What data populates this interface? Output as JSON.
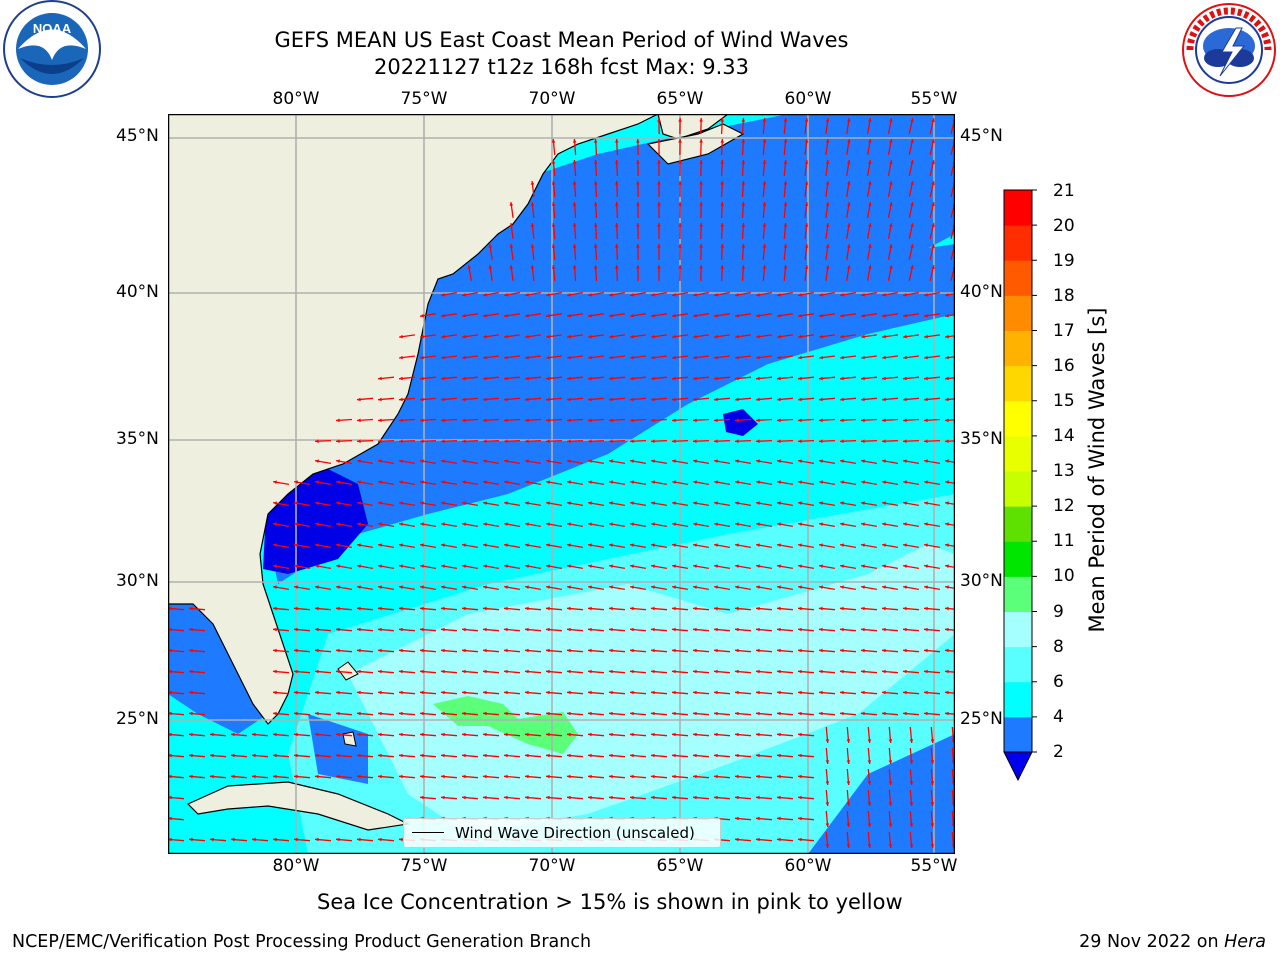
{
  "title": {
    "line1": "GEFS MEAN US East Coast Mean Period of Wind Waves",
    "line2": "20221127 t12z 168h fcst   Max: 9.33"
  },
  "logos": {
    "noaa_text": "NOAA",
    "noaa_ring_text": "NATIONAL OCEANIC AND ATMOSPHERIC ADMINISTRATION • U.S. DEPARTMENT OF COMMERCE",
    "nws_ring_text": "NATIONAL WEATHER SERVICE"
  },
  "map": {
    "lon_labels": [
      "80°W",
      "75°W",
      "70°W",
      "65°W",
      "60°W",
      "55°W"
    ],
    "lat_labels": [
      "45°N",
      "40°N",
      "35°N",
      "30°N",
      "25°N"
    ],
    "legend_label": "Wind Wave Direction (unscaled)",
    "colors": {
      "land": "#efefdf",
      "ocean_band_2_4": "#1e7bff",
      "ocean_band_lt2": "#0000e6",
      "ocean_band_4_6": "#00ffff",
      "ocean_band_6_8": "#59ffff",
      "ocean_band_8_9": "#a6ffff",
      "ocean_band_9_10": "#5bff7a",
      "grid": "#b0b0b0",
      "arrow": "#ff0000"
    }
  },
  "colorbar": {
    "label": "Mean Period of Wind Waves [s]",
    "ticks": [
      "21",
      "20",
      "19",
      "18",
      "17",
      "16",
      "15",
      "14",
      "13",
      "12",
      "11",
      "10",
      "9",
      "8",
      "6",
      "4",
      "2"
    ],
    "levels": [
      2,
      4,
      6,
      8,
      9,
      10,
      11,
      12,
      13,
      14,
      15,
      16,
      17,
      18,
      19,
      20,
      21
    ],
    "colors": [
      "#0000ff",
      "#1e7bff",
      "#00ffff",
      "#59ffff",
      "#a6ffff",
      "#5bff7a",
      "#00e600",
      "#5ee000",
      "#c8ff00",
      "#e8ff00",
      "#ffff00",
      "#ffd700",
      "#ffb200",
      "#ff8c00",
      "#ff5a00",
      "#ff2d00",
      "#ff0000"
    ],
    "extend_color": "#0000ee"
  },
  "footer": {
    "note": "Sea Ice Concentration > 15% is shown in pink to yellow",
    "org": "NCEP/EMC/Verification Post Processing Product Generation Branch",
    "date": "29 Nov 2022 on ",
    "machine": "Hera"
  }
}
